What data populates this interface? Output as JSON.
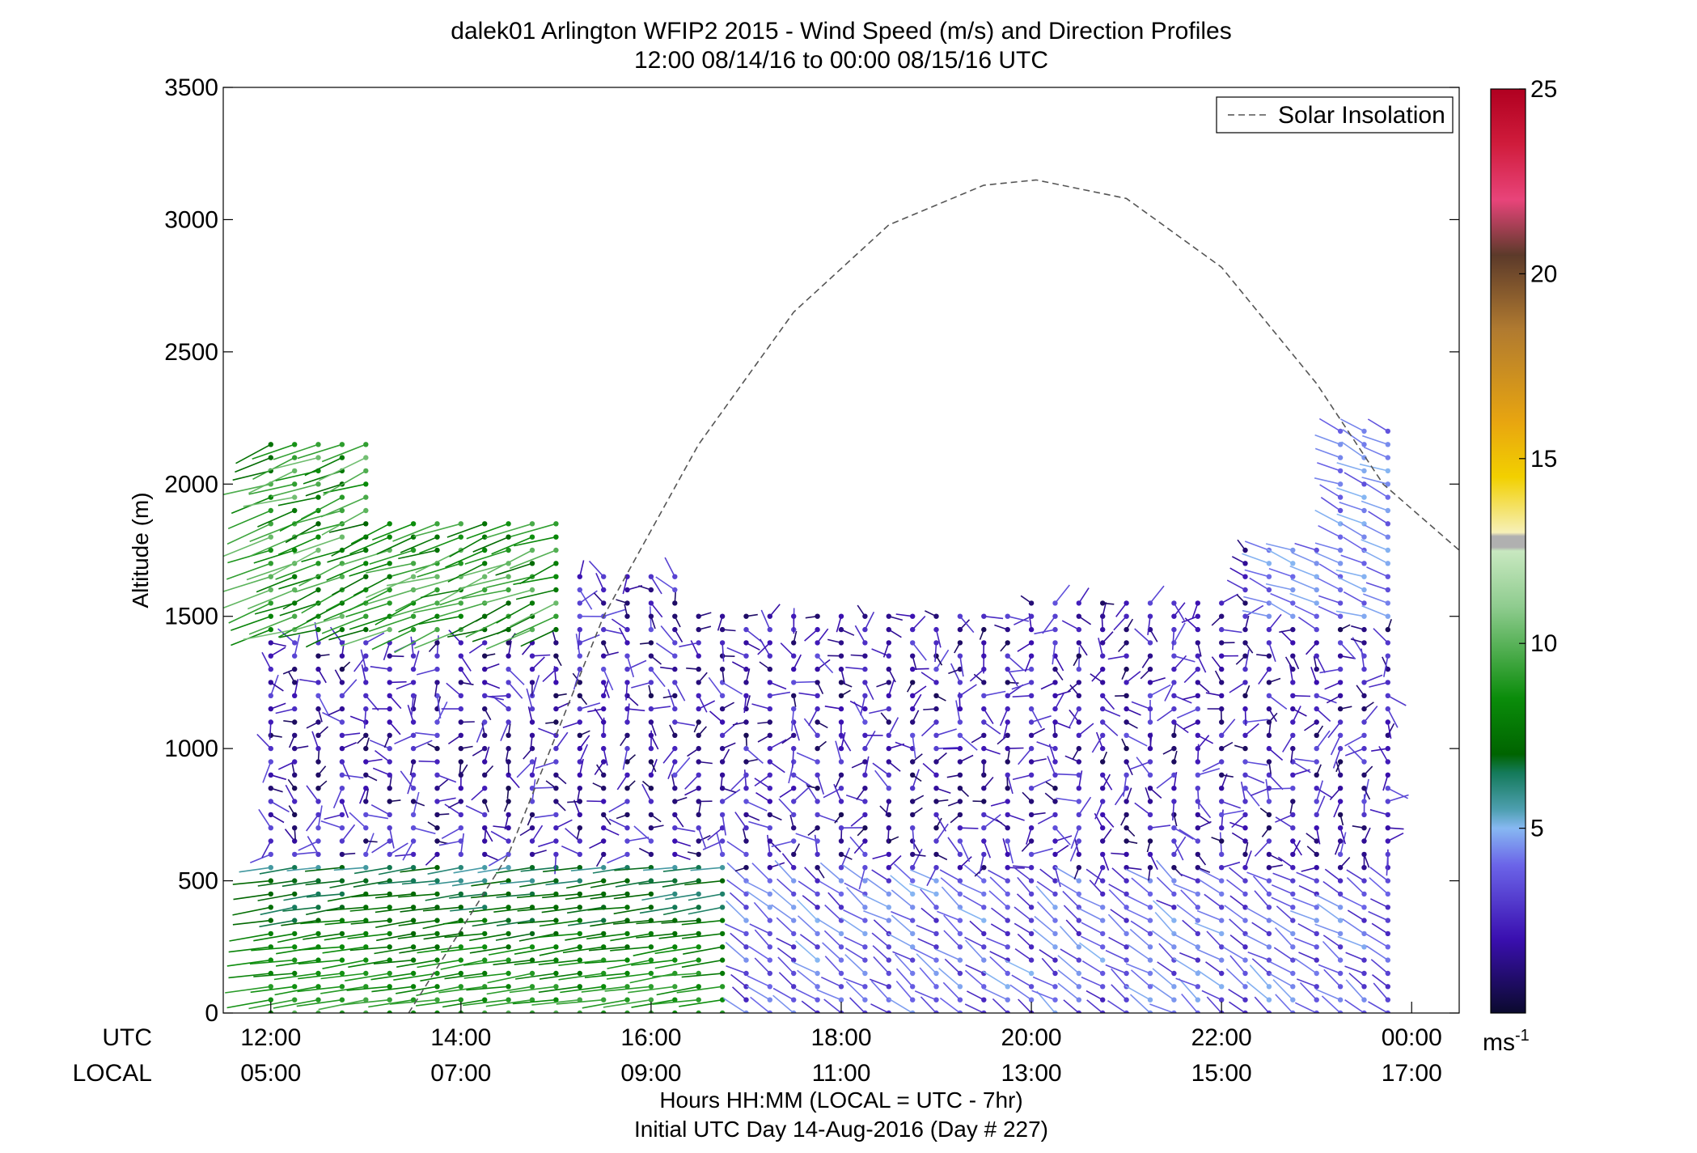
{
  "chart_data": {
    "type": "scatter",
    "title": "dalek01 Arlington WFIP2 2015 - Wind Speed (m/s) and Direction Profiles",
    "subtitle": "12:00 08/14/16 to 00:00 08/15/16  UTC",
    "ylabel": "Altitude (m)",
    "xlabel": "Hours HH:MM  (LOCAL = UTC - 7hr)",
    "xlabel2": "Initial UTC Day 14-Aug-2016 (Day # 227)",
    "ylim": [
      0,
      3500
    ],
    "xlim_hours_utc": [
      11.5,
      24.5
    ],
    "y_ticks": [
      0,
      500,
      1000,
      1500,
      2000,
      2500,
      3000,
      3500
    ],
    "x_tick_row_label_utc": "UTC",
    "x_tick_row_label_local": "LOCAL",
    "x_ticks": [
      {
        "hour": 12,
        "utc": "12:00",
        "local": "05:00"
      },
      {
        "hour": 14,
        "utc": "14:00",
        "local": "07:00"
      },
      {
        "hour": 16,
        "utc": "16:00",
        "local": "09:00"
      },
      {
        "hour": 18,
        "utc": "18:00",
        "local": "11:00"
      },
      {
        "hour": 20,
        "utc": "20:00",
        "local": "13:00"
      },
      {
        "hour": 22,
        "utc": "22:00",
        "local": "15:00"
      },
      {
        "hour": 24,
        "utc": "00:00",
        "local": "17:00"
      }
    ],
    "legend": {
      "entries": [
        "Solar Insolation"
      ],
      "placement": "top-right"
    },
    "colorbar": {
      "unit": "ms",
      "unit_exponent": "-1",
      "range": [
        0,
        25
      ],
      "ticks": [
        5,
        10,
        15,
        20,
        25
      ],
      "stops": [
        {
          "v": 0,
          "c": "#0b0a2e"
        },
        {
          "v": 2,
          "c": "#3a0fb0"
        },
        {
          "v": 4,
          "c": "#6b64e8"
        },
        {
          "v": 5,
          "c": "#87b8f2"
        },
        {
          "v": 5.5,
          "c": "#4e9fb0"
        },
        {
          "v": 6.5,
          "c": "#147a5a"
        },
        {
          "v": 7,
          "c": "#006400"
        },
        {
          "v": 8.5,
          "c": "#0a8c0a"
        },
        {
          "v": 11,
          "c": "#8fcc8f"
        },
        {
          "v": 12.5,
          "c": "#c8e8c0"
        },
        {
          "v": 12.6,
          "c": "#b0b0b0"
        },
        {
          "v": 12.9,
          "c": "#b0b0b0"
        },
        {
          "v": 13.0,
          "c": "#f6f0b8"
        },
        {
          "v": 14.5,
          "c": "#f2d000"
        },
        {
          "v": 16,
          "c": "#e8a510"
        },
        {
          "v": 18.5,
          "c": "#b07a30"
        },
        {
          "v": 20.5,
          "c": "#5c3a2a"
        },
        {
          "v": 22,
          "c": "#e8447a"
        },
        {
          "v": 23.5,
          "c": "#d01c3c"
        },
        {
          "v": 25,
          "c": "#b00020"
        }
      ]
    },
    "solar_insolation_curve": {
      "style": "dashed",
      "color": "#555555",
      "points": [
        [
          13.45,
          0
        ],
        [
          14.5,
          600
        ],
        [
          15.5,
          1500
        ],
        [
          16.5,
          2150
        ],
        [
          17.5,
          2650
        ],
        [
          18.5,
          2980
        ],
        [
          19.5,
          3130
        ],
        [
          20.05,
          3150
        ],
        [
          21,
          3080
        ],
        [
          22,
          2820
        ],
        [
          23,
          2380
        ],
        [
          23.7,
          2000
        ],
        [
          24.5,
          1750
        ]
      ]
    },
    "barb_profiles": {
      "note": "wind speed/direction profile sticks per time step; speed in m/s, direction in degrees (meteorological)",
      "time_step_hours": 0.25,
      "altitude_step_m": 50,
      "summary_regimes": [
        {
          "hours": [
            12,
            17
          ],
          "altitude_m": [
            0,
            550
          ],
          "speed_ms": 8.5,
          "direction_deg": 260
        },
        {
          "hours": [
            12,
            15
          ],
          "altitude_m": [
            1450,
            2100
          ],
          "speed_ms": 9,
          "direction_deg": 250
        },
        {
          "hours": [
            12,
            24
          ],
          "altitude_m": [
            600,
            1500
          ],
          "speed_ms": 2,
          "direction_deg": 270
        },
        {
          "hours": [
            17,
            24
          ],
          "altitude_m": [
            0,
            500
          ],
          "speed_ms": 3.5,
          "direction_deg": 300
        },
        {
          "hours": [
            22.5,
            24
          ],
          "altitude_m": [
            1500,
            2100
          ],
          "speed_ms": 4,
          "direction_deg": 290
        }
      ]
    }
  }
}
